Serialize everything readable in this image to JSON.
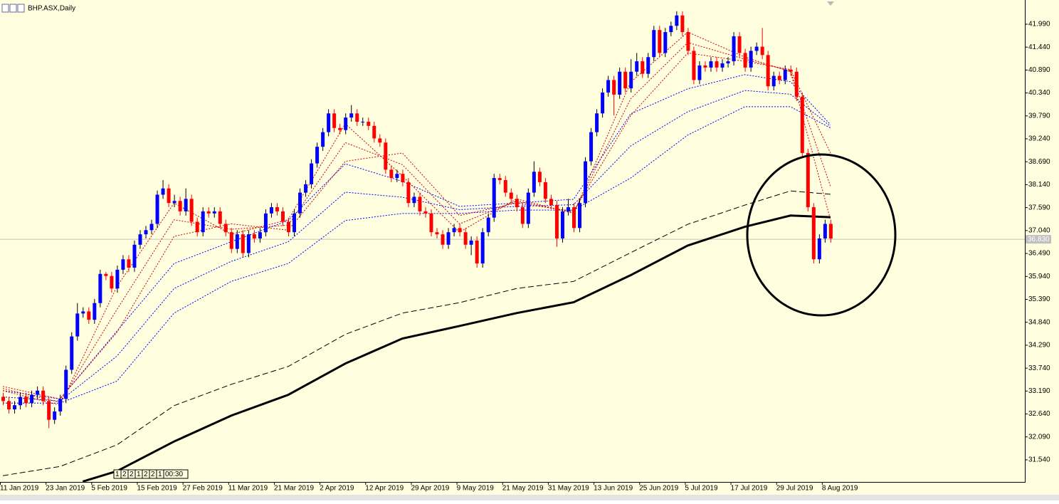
{
  "chart_data": {
    "type": "candlestick",
    "title": "BHP.ASX,Daily",
    "ylim": [
      31.01,
      42.57
    ],
    "yticks": [
      {
        "value": 41.99,
        "label": "41.990"
      },
      {
        "value": 41.44,
        "label": "41.440"
      },
      {
        "value": 40.89,
        "label": "40.890"
      },
      {
        "value": 40.34,
        "label": "40.340"
      },
      {
        "value": 39.79,
        "label": "39.790"
      },
      {
        "value": 39.24,
        "label": "39.240"
      },
      {
        "value": 38.69,
        "label": "38.690"
      },
      {
        "value": 38.14,
        "label": "38.140"
      },
      {
        "value": 37.59,
        "label": "37.590"
      },
      {
        "value": 37.04,
        "label": "37.040"
      },
      {
        "value": 36.49,
        "label": "36.490"
      },
      {
        "value": 35.94,
        "label": "35.940"
      },
      {
        "value": 35.39,
        "label": "35.390"
      },
      {
        "value": 34.84,
        "label": "34.840"
      },
      {
        "value": 34.29,
        "label": "34.290"
      },
      {
        "value": 33.74,
        "label": "33.740"
      },
      {
        "value": 33.19,
        "label": "33.190"
      },
      {
        "value": 32.64,
        "label": "32.640"
      },
      {
        "value": 32.09,
        "label": "32.090"
      },
      {
        "value": 31.54,
        "label": "31.540"
      }
    ],
    "bid": {
      "value": 36.83,
      "label": "36.830"
    },
    "timer": [
      "1",
      "2",
      "2",
      "1",
      "2",
      "2",
      "1",
      "00:30"
    ],
    "up_color": "#0000ff",
    "down_color": "#ff0000",
    "categories": [
      "11 Jan 2019",
      null,
      null,
      null,
      null,
      null,
      null,
      null,
      "23 Jan 2019",
      null,
      null,
      null,
      null,
      null,
      null,
      null,
      "5 Feb 2019",
      null,
      null,
      null,
      null,
      null,
      null,
      null,
      "15 Feb 2019",
      null,
      null,
      null,
      null,
      null,
      null,
      null,
      "27 Feb 2019",
      null,
      null,
      null,
      null,
      null,
      null,
      null,
      "11 Mar 2019",
      null,
      null,
      null,
      null,
      null,
      null,
      null,
      "21 Mar 2019",
      null,
      null,
      null,
      null,
      null,
      null,
      null,
      "2 Apr 2019",
      null,
      null,
      null,
      null,
      null,
      null,
      null,
      "12 Apr 2019",
      null,
      null,
      null,
      null,
      null,
      null,
      null,
      "29 Apr 2019",
      null,
      null,
      null,
      null,
      null,
      null,
      null,
      "9 May 2019",
      null,
      null,
      null,
      null,
      null,
      null,
      null,
      "21 May 2019",
      null,
      null,
      null,
      null,
      null,
      null,
      null,
      "31 May 2019",
      null,
      null,
      null,
      null,
      null,
      null,
      null,
      "13 Jun 2019",
      null,
      null,
      null,
      null,
      null,
      null,
      null,
      "25 Jun 2019",
      null,
      null,
      null,
      null,
      null,
      null,
      null,
      "5 Jul 2019",
      null,
      null,
      null,
      null,
      null,
      null,
      null,
      "17 Jul 2019",
      null,
      null,
      null,
      null,
      null,
      null,
      null,
      "29 Jul 2019",
      null,
      null,
      null,
      null,
      null,
      null,
      null,
      "8 Aug 2019",
      null
    ],
    "open": [
      33.05,
      32.95,
      32.75,
      32.85,
      33.05,
      32.9,
      33.1,
      33.2,
      32.95,
      32.5,
      32.7,
      33.0,
      33.7,
      34.5,
      35.05,
      35.1,
      34.9,
      35.3,
      36.0,
      35.95,
      35.65,
      36.1,
      36.35,
      36.15,
      36.7,
      36.95,
      37.05,
      37.2,
      37.9,
      38.05,
      37.7,
      37.75,
      37.5,
      37.8,
      37.25,
      37.0,
      37.5,
      37.45,
      37.5,
      37.2,
      37.0,
      36.6,
      36.95,
      36.5,
      36.95,
      36.85,
      37.0,
      37.45,
      37.6,
      37.5,
      37.25,
      37.0,
      37.45,
      37.95,
      38.15,
      38.65,
      39.05,
      39.4,
      39.85,
      39.5,
      39.45,
      39.75,
      39.85,
      39.65,
      39.65,
      39.55,
      39.25,
      39.15,
      38.5,
      38.3,
      38.4,
      38.2,
      37.7,
      37.85,
      37.5,
      37.45,
      37.0,
      36.95,
      36.7,
      37.0,
      37.1,
      37.0,
      36.7,
      36.8,
      36.25,
      37.0,
      37.35,
      38.3,
      38.25,
      37.95,
      37.8,
      37.6,
      37.2,
      37.95,
      38.45,
      38.2,
      37.8,
      37.65,
      36.85,
      37.5,
      37.6,
      37.1,
      37.7,
      38.7,
      39.4,
      39.85,
      40.35,
      40.65,
      40.3,
      40.85,
      40.45,
      40.85,
      41.1,
      40.8,
      41.2,
      41.85,
      41.3,
      41.8,
      41.95,
      42.2,
      41.8,
      41.35,
      40.65,
      41.0,
      40.95,
      41.1,
      40.95,
      41.05,
      41.1,
      41.7,
      41.3,
      40.95,
      41.35,
      41.45,
      41.25,
      40.5,
      40.75,
      40.65,
      40.9,
      40.85,
      40.25,
      38.9,
      37.6,
      36.35,
      36.85,
      37.2
    ],
    "high": [
      33.15,
      33.05,
      32.95,
      33.15,
      33.15,
      33.2,
      33.3,
      33.3,
      33.05,
      32.8,
      33.1,
      33.8,
      34.6,
      35.3,
      35.2,
      35.2,
      35.4,
      36.1,
      36.05,
      36.05,
      36.2,
      36.45,
      36.45,
      36.8,
      37.05,
      37.15,
      37.3,
      38.0,
      38.25,
      38.15,
      37.9,
      37.85,
      38.05,
      37.9,
      37.35,
      37.6,
      37.6,
      37.6,
      37.6,
      37.3,
      37.1,
      37.05,
      37.05,
      37.05,
      37.05,
      37.1,
      37.55,
      37.7,
      37.7,
      37.6,
      37.35,
      37.55,
      38.05,
      38.25,
      38.75,
      39.15,
      39.5,
      39.95,
      39.95,
      39.6,
      39.85,
      40.05,
      39.95,
      39.75,
      39.75,
      39.65,
      39.35,
      39.25,
      38.6,
      38.5,
      38.5,
      38.3,
      37.95,
      37.95,
      37.6,
      37.55,
      37.1,
      37.05,
      37.1,
      37.2,
      37.2,
      37.1,
      36.9,
      36.9,
      37.1,
      37.45,
      38.4,
      38.4,
      38.35,
      38.05,
      37.9,
      37.7,
      38.05,
      38.7,
      38.55,
      38.3,
      37.9,
      37.75,
      37.6,
      37.8,
      37.7,
      37.8,
      38.8,
      39.5,
      39.95,
      40.45,
      40.75,
      40.75,
      40.95,
      40.95,
      41.15,
      41.3,
      41.2,
      41.3,
      41.95,
      41.95,
      41.9,
      42.05,
      42.3,
      42.3,
      41.9,
      41.45,
      41.1,
      41.1,
      41.2,
      41.2,
      41.15,
      41.2,
      41.8,
      41.8,
      41.4,
      41.45,
      41.55,
      41.9,
      41.35,
      40.85,
      40.85,
      41.0,
      41.0,
      40.95,
      40.35,
      39.0,
      37.7,
      36.95,
      37.3,
      37.3
    ],
    "low": [
      32.85,
      32.65,
      32.65,
      32.75,
      32.8,
      32.8,
      33.0,
      32.85,
      32.3,
      32.4,
      32.6,
      32.9,
      33.6,
      34.4,
      34.95,
      34.8,
      34.8,
      35.2,
      35.85,
      35.55,
      35.55,
      36.0,
      36.05,
      36.05,
      36.6,
      36.85,
      36.95,
      37.1,
      37.8,
      37.6,
      37.6,
      37.4,
      37.4,
      37.15,
      36.9,
      36.9,
      37.35,
      37.35,
      37.1,
      36.9,
      36.5,
      36.5,
      36.4,
      36.4,
      36.75,
      36.75,
      36.9,
      37.35,
      37.4,
      37.15,
      36.9,
      36.9,
      37.35,
      37.85,
      38.05,
      38.55,
      38.95,
      39.3,
      39.4,
      39.35,
      39.35,
      39.65,
      39.55,
      39.55,
      39.45,
      39.15,
      39.05,
      38.4,
      38.2,
      38.2,
      38.1,
      37.6,
      37.6,
      37.4,
      37.35,
      36.9,
      36.85,
      36.6,
      36.6,
      36.9,
      36.9,
      36.6,
      36.45,
      36.15,
      36.15,
      36.9,
      37.25,
      38.15,
      37.85,
      37.7,
      37.5,
      37.1,
      37.1,
      37.85,
      38.1,
      37.7,
      37.55,
      36.65,
      36.75,
      37.4,
      37.0,
      37.0,
      37.6,
      38.6,
      39.3,
      39.75,
      40.25,
      39.8,
      40.2,
      40.35,
      40.35,
      40.75,
      40.7,
      40.7,
      41.1,
      41.2,
      41.2,
      41.7,
      41.85,
      41.7,
      41.25,
      40.55,
      40.55,
      40.85,
      40.85,
      40.85,
      40.85,
      40.95,
      41.0,
      41.2,
      40.85,
      40.85,
      41.25,
      41.15,
      40.4,
      40.4,
      40.55,
      40.55,
      40.75,
      40.15,
      38.8,
      37.5,
      36.25,
      36.25,
      36.75,
      36.75
    ],
    "close": [
      32.95,
      32.75,
      32.85,
      33.05,
      32.9,
      33.1,
      33.2,
      32.95,
      32.5,
      32.7,
      33.0,
      33.7,
      34.5,
      35.05,
      35.1,
      34.9,
      35.3,
      36.0,
      35.95,
      35.65,
      36.1,
      36.35,
      36.15,
      36.7,
      36.95,
      37.05,
      37.2,
      37.9,
      38.05,
      37.7,
      37.75,
      37.5,
      37.8,
      37.25,
      37.0,
      37.5,
      37.45,
      37.5,
      37.2,
      37.0,
      36.6,
      36.95,
      36.5,
      36.95,
      36.85,
      37.0,
      37.45,
      37.6,
      37.5,
      37.25,
      37.0,
      37.45,
      37.95,
      38.15,
      38.65,
      39.05,
      39.4,
      39.85,
      39.5,
      39.45,
      39.75,
      39.85,
      39.65,
      39.65,
      39.55,
      39.25,
      39.15,
      38.5,
      38.3,
      38.4,
      38.2,
      37.7,
      37.85,
      37.5,
      37.45,
      37.0,
      36.95,
      36.7,
      37.0,
      37.1,
      37.0,
      36.7,
      36.8,
      36.25,
      37.0,
      37.35,
      38.3,
      38.25,
      37.95,
      37.8,
      37.6,
      37.2,
      37.95,
      38.45,
      38.2,
      37.8,
      37.65,
      36.85,
      37.5,
      37.6,
      37.1,
      37.7,
      38.7,
      39.4,
      39.85,
      40.35,
      40.65,
      40.3,
      40.85,
      40.45,
      40.85,
      41.1,
      40.8,
      41.2,
      41.85,
      41.3,
      41.8,
      41.95,
      42.2,
      41.8,
      41.35,
      40.65,
      41.0,
      40.95,
      41.1,
      40.95,
      41.05,
      41.1,
      41.7,
      41.3,
      40.95,
      41.35,
      41.45,
      41.25,
      40.5,
      40.75,
      40.65,
      40.9,
      40.85,
      40.25,
      38.9,
      37.6,
      36.35,
      36.85,
      37.2,
      36.85
    ],
    "series": [
      {
        "color": "#0000ff",
        "style": "dotted",
        "width": 1,
        "x": [
          0,
          10,
          20,
          30,
          40,
          50,
          60,
          70,
          80,
          90,
          100,
          110,
          120,
          130,
          138,
          145
        ],
        "values": [
          33.2,
          33.0,
          34.63,
          36.25,
          36.77,
          37.28,
          38.64,
          38.22,
          37.62,
          37.7,
          37.79,
          39.84,
          40.44,
          40.78,
          40.61,
          39.58
        ]
      },
      {
        "color": "#0000ff",
        "style": "dotted",
        "width": 1,
        "x": [
          0,
          10,
          20,
          30,
          40,
          50,
          60,
          70,
          80,
          90,
          100,
          110,
          120,
          130,
          138,
          145
        ],
        "values": [
          33.05,
          32.95,
          34.03,
          35.65,
          36.3,
          36.77,
          37.96,
          37.84,
          37.54,
          37.62,
          37.66,
          39.07,
          39.89,
          40.4,
          40.31,
          39.54
        ]
      },
      {
        "color": "#0000ff",
        "style": "dotted",
        "width": 1,
        "x": [
          0,
          10,
          20,
          30,
          40,
          50,
          60,
          70,
          80,
          90,
          100,
          110,
          120,
          130,
          138,
          145
        ],
        "values": [
          32.9,
          32.9,
          33.43,
          35.06,
          35.82,
          36.25,
          37.28,
          37.45,
          37.45,
          37.53,
          37.53,
          38.3,
          39.33,
          40.01,
          40.01,
          39.5
        ]
      },
      {
        "color": "#d00000",
        "style": "dotted",
        "width": 1,
        "x": [
          0,
          10,
          20,
          30,
          40,
          50,
          60,
          70,
          80,
          90,
          100,
          110,
          120,
          130,
          138,
          145
        ],
        "values": [
          33.2,
          32.85,
          35.7,
          37.7,
          36.95,
          37.3,
          39.6,
          38.35,
          37.0,
          37.8,
          37.45,
          40.6,
          41.8,
          41.2,
          40.85,
          37.3
        ]
      },
      {
        "color": "#d00000",
        "style": "dotted",
        "width": 1,
        "x": [
          0,
          10,
          20,
          30,
          40,
          50,
          60,
          70,
          80,
          90,
          100,
          110,
          120,
          130,
          138,
          145
        ],
        "values": [
          33.25,
          32.92,
          35.15,
          37.3,
          37.07,
          37.17,
          39.15,
          38.62,
          37.2,
          37.75,
          37.47,
          40.2,
          41.55,
          41.15,
          40.87,
          38.1
        ]
      },
      {
        "color": "#d00000",
        "style": "dotted",
        "width": 1,
        "x": [
          0,
          10,
          20,
          30,
          40,
          50,
          60,
          70,
          80,
          90,
          100,
          110,
          120,
          130,
          138,
          145
        ],
        "values": [
          33.3,
          33.0,
          34.6,
          36.9,
          37.2,
          37.05,
          38.7,
          38.9,
          37.4,
          37.7,
          37.5,
          39.8,
          41.3,
          41.1,
          40.9,
          38.9
        ]
      },
      {
        "color": "#000000",
        "style": "dashed",
        "width": 1,
        "x": [
          0,
          10,
          20,
          30,
          40,
          50,
          60,
          70,
          80,
          90,
          100,
          110,
          120,
          130,
          138,
          145
        ],
        "values": [
          31.16,
          31.38,
          31.9,
          32.84,
          33.35,
          33.78,
          34.55,
          35.06,
          35.31,
          35.65,
          35.82,
          36.51,
          37.19,
          37.65,
          37.99,
          37.91
        ]
      },
      {
        "color": "#000000",
        "style": "solid",
        "width": 3,
        "x": [
          14,
          20,
          30,
          40,
          50,
          60,
          70,
          80,
          90,
          100,
          110,
          120,
          130,
          138,
          145
        ],
        "values": [
          31.02,
          31.27,
          31.98,
          32.6,
          33.1,
          33.85,
          34.45,
          34.75,
          35.06,
          35.32,
          35.97,
          36.68,
          37.13,
          37.4,
          37.36
        ]
      }
    ]
  }
}
